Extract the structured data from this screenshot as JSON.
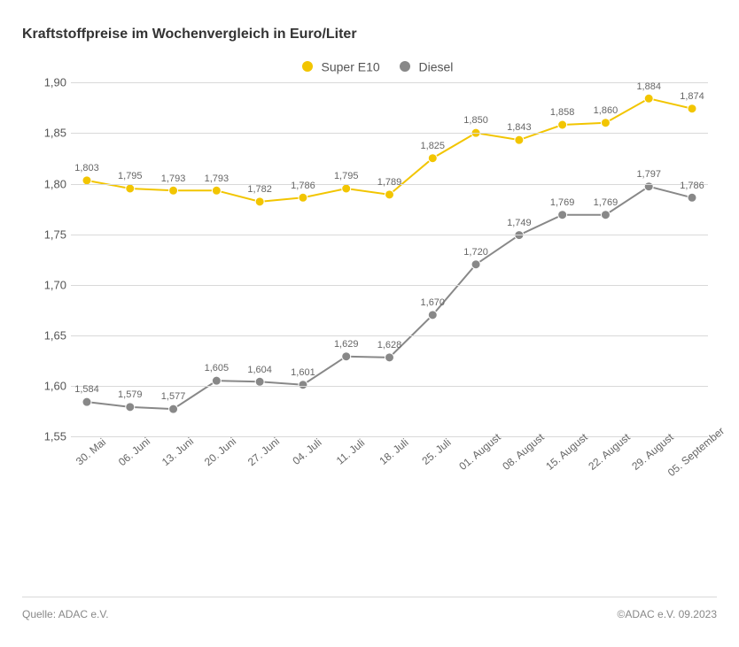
{
  "title": "Kraftstoffpreise im Wochenvergleich in Euro/Liter",
  "legend": {
    "series1": {
      "label": "Super E10",
      "color": "#f2c500"
    },
    "series2": {
      "label": "Diesel",
      "color": "#888888"
    }
  },
  "chart": {
    "type": "line",
    "background_color": "#ffffff",
    "grid_color": "#d9d9d9",
    "ylim": [
      1.55,
      1.9
    ],
    "yticks": [
      1.55,
      1.6,
      1.65,
      1.7,
      1.75,
      1.8,
      1.85,
      1.9
    ],
    "ytick_labels": [
      "1,55",
      "1,60",
      "1,65",
      "1,70",
      "1,75",
      "1,80",
      "1,85",
      "1,90"
    ],
    "categories": [
      "30. Mai",
      "06. Juni",
      "13. Juni",
      "20. Juni",
      "27. Juni",
      "04. Juli",
      "11. Juli",
      "18. Juli",
      "25. Juli",
      "01. August",
      "08. August",
      "15. August",
      "22. August",
      "29. August",
      "05. September"
    ],
    "series": [
      {
        "name": "Super E10",
        "color": "#f2c500",
        "marker": "circle",
        "marker_size": 5,
        "line_width": 2,
        "values": [
          1.803,
          1.795,
          1.793,
          1.793,
          1.782,
          1.786,
          1.795,
          1.789,
          1.825,
          1.85,
          1.843,
          1.858,
          1.86,
          1.884,
          1.874
        ],
        "value_labels": [
          "1,803",
          "1,795",
          "1,793",
          "1,793",
          "1,782",
          "1,786",
          "1,795",
          "1,789",
          "1,825",
          "1,850",
          "1,843",
          "1,858",
          "1,860",
          "1,884",
          "1,874"
        ],
        "label_dy": -8
      },
      {
        "name": "Diesel",
        "color": "#888888",
        "marker": "circle",
        "marker_size": 5,
        "line_width": 2,
        "values": [
          1.584,
          1.579,
          1.577,
          1.605,
          1.604,
          1.601,
          1.629,
          1.628,
          1.67,
          1.72,
          1.749,
          1.769,
          1.769,
          1.797,
          1.786
        ],
        "value_labels": [
          "1,584",
          "1,579",
          "1,577",
          "1,605",
          "1,604",
          "1,601",
          "1,629",
          "1,628",
          "1,670",
          "1,720",
          "1,749",
          "1,769",
          "1,769",
          "1,797",
          "1,786"
        ],
        "label_dy": -8
      }
    ]
  },
  "footer": {
    "source": "Quelle: ADAC e.V.",
    "copyright": "©ADAC e.V. 09.2023"
  }
}
